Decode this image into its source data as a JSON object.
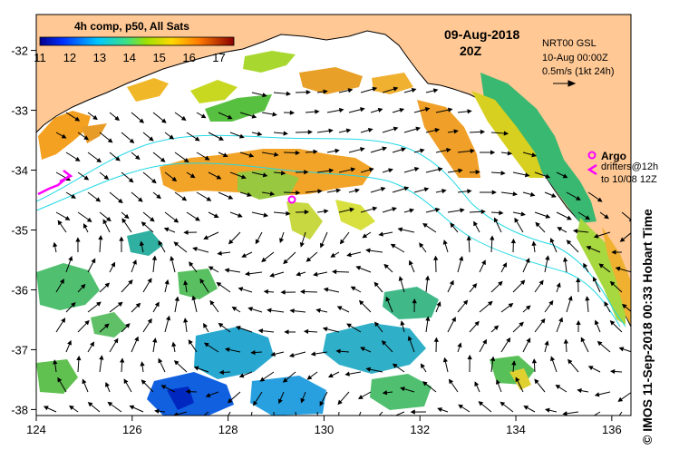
{
  "colorbar": {
    "title": "4h comp, p50, All Sats",
    "ticks": [
      "11",
      "12",
      "13",
      "14",
      "15",
      "16",
      "17"
    ]
  },
  "header": {
    "date": "09-Aug-2018",
    "hour": "20Z"
  },
  "current_legend": {
    "line1": "NRT00 GSL",
    "line2": "10-Aug 00:00Z",
    "scale": "0.5m/s (1kt 24h)"
  },
  "argo": {
    "label": "Argo"
  },
  "drifters": {
    "line1": "drifters@12h",
    "line2": "to 10/08 12Z"
  },
  "credit": "© IMOS 11-Sep-2018 00:33 Hobart Time",
  "axes": {
    "x_ticks": [
      "124",
      "126",
      "128",
      "130",
      "132",
      "134",
      "136"
    ],
    "y_ticks": [
      "-32",
      "-33",
      "-34",
      "-35",
      "-36",
      "-37",
      "-38"
    ]
  },
  "colors": {
    "land": "#ffc894",
    "ocean": "#ffffff",
    "contour": "#22d8e6",
    "argo": "#ff00ff"
  },
  "map_data": {
    "lon_range": [
      124,
      136.4
    ],
    "lat_range": [
      -38.1,
      -31.4
    ],
    "sst_range_c": [
      11,
      17.5
    ]
  }
}
